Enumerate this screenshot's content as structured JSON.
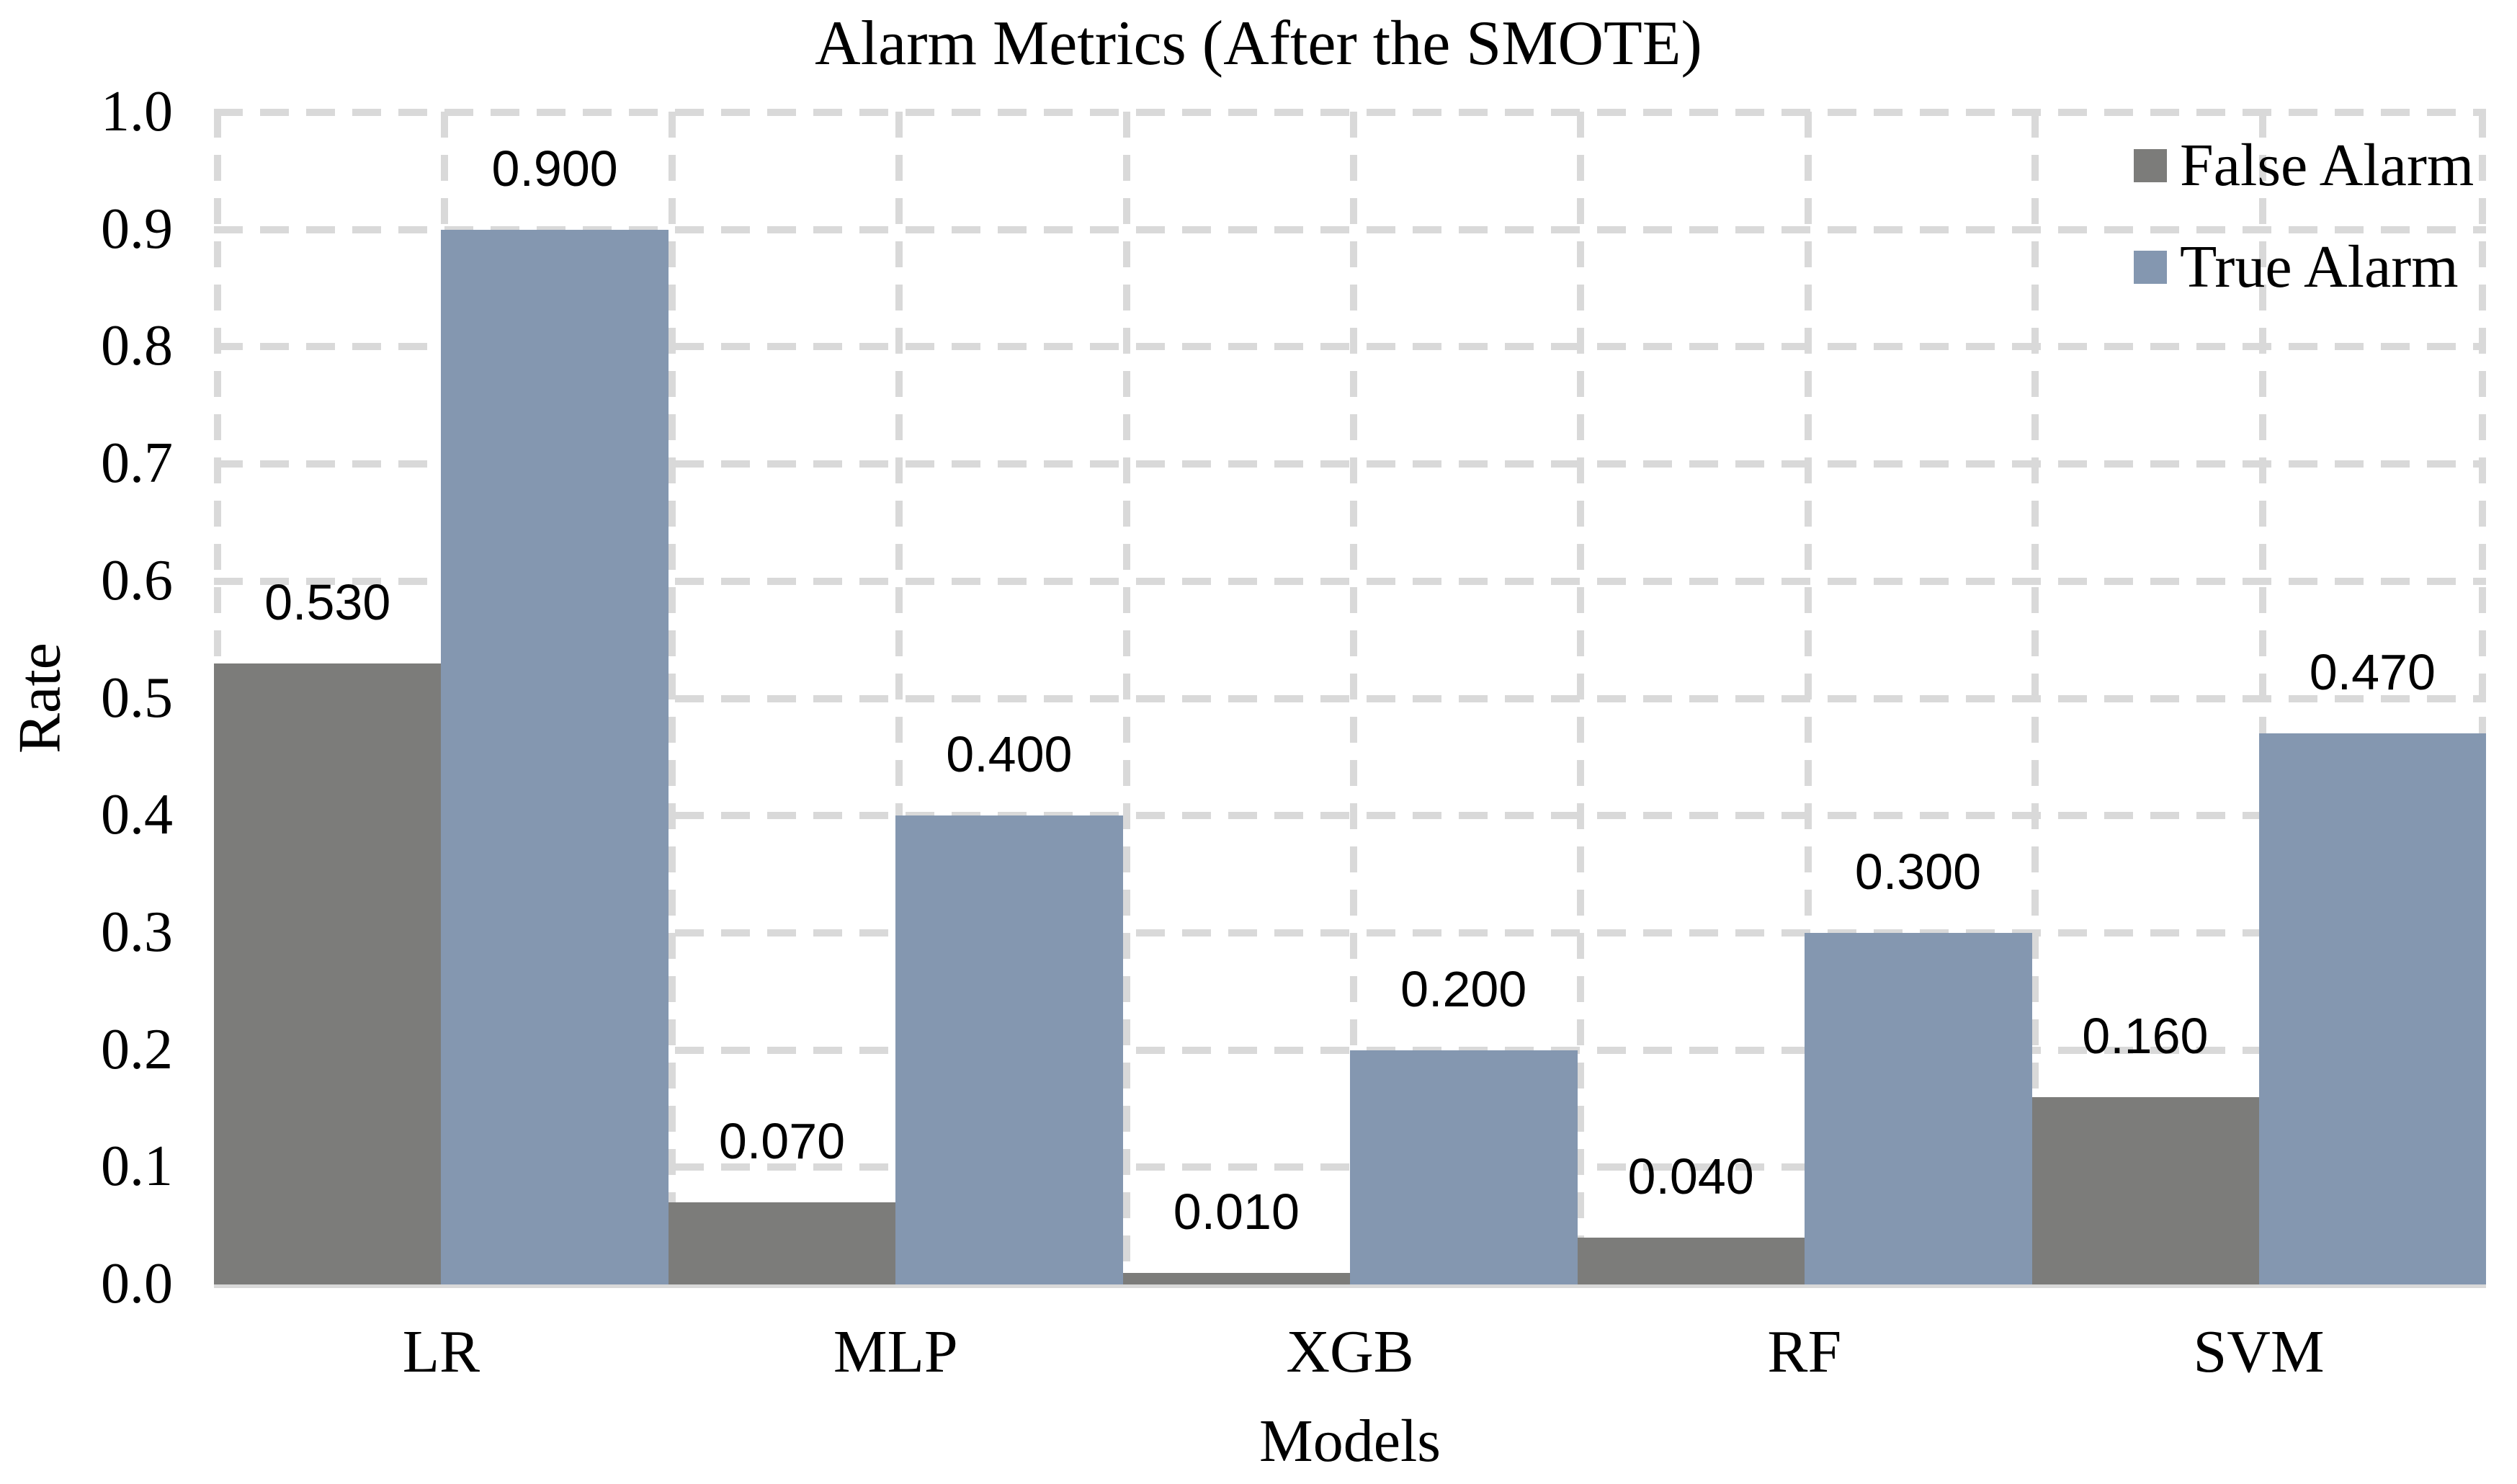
{
  "chart_data": {
    "type": "bar",
    "title": "Alarm Metrics (After the SMOTE)",
    "xlabel": "Models",
    "ylabel": "Rate",
    "categories": [
      "LR",
      "MLP",
      "XGB",
      "RF",
      "SVM"
    ],
    "series": [
      {
        "name": "False Alarm",
        "color": "#7C7C7A",
        "values": [
          0.53,
          0.07,
          0.01,
          0.04,
          0.16
        ],
        "labels": [
          "0.530",
          "0.070",
          "0.010",
          "0.040",
          "0.160"
        ]
      },
      {
        "name": "True Alarm",
        "color": "#8497B0",
        "values": [
          0.9,
          0.4,
          0.2,
          0.3,
          0.47
        ],
        "labels": [
          "0.900",
          "0.400",
          "0.200",
          "0.300",
          "0.470"
        ]
      }
    ],
    "ylim": [
      0,
      1
    ],
    "ytick_step": 0.1,
    "ytick_labels": [
      "0.0",
      "0.1",
      "0.2",
      "0.3",
      "0.4",
      "0.5",
      "0.6",
      "0.7",
      "0.8",
      "0.9",
      "1.0"
    ],
    "grid": {
      "horizontal": true,
      "vertical": true,
      "style": "dashed",
      "color": "#D9D9D9",
      "axis_line_color": "#D9D9D9"
    },
    "legend_position": "top-right",
    "bar_gap": 0
  }
}
